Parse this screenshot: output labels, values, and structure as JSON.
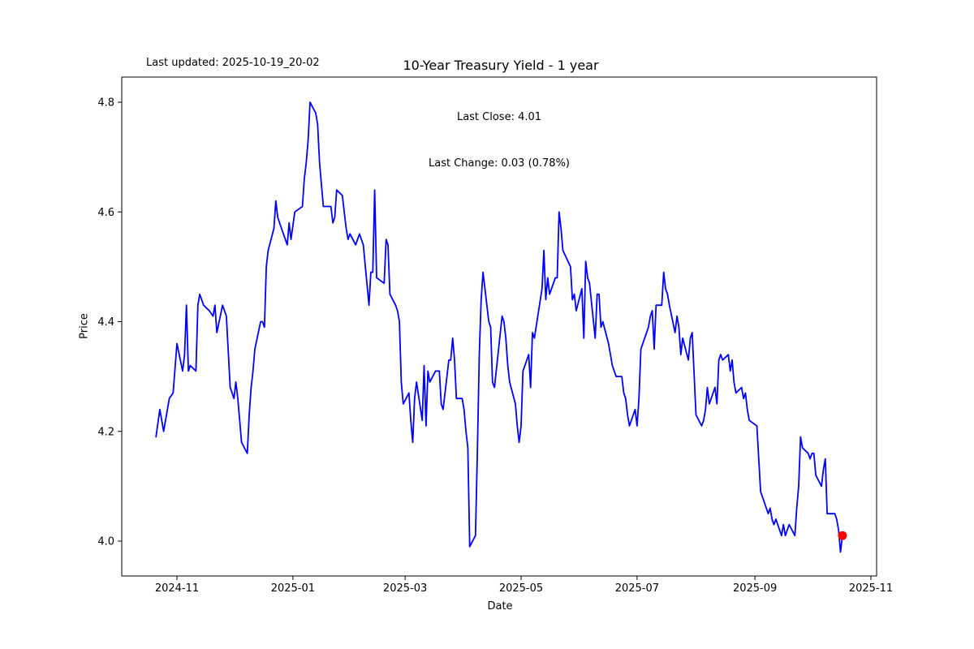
{
  "header": {
    "last_updated": "Last updated: 2025-10-19_20-02",
    "title": "10-Year Treasury Yield - 1 year",
    "annotation_line1": "Last Close: 4.01",
    "annotation_line2": "Last Change: 0.03 (0.78%)"
  },
  "chart_data": {
    "type": "line",
    "title": "10-Year Treasury Yield - 1 year",
    "xlabel": "Date",
    "ylabel": "Price",
    "grid": false,
    "legend": null,
    "line_color": "#0000ff",
    "last_point_marker_color": "#ff0000",
    "frame_color": "#000000",
    "last_close": 4.01,
    "last_change_text": "0.03 (0.78%)",
    "ylim": [
      3.936,
      4.846
    ],
    "xlim": [
      "2024-10-03",
      "2025-11-04"
    ],
    "y_ticks": [
      4.0,
      4.2,
      4.4,
      4.6,
      4.8
    ],
    "y_tick_labels": [
      "4.0",
      "4.2",
      "4.4",
      "4.6",
      "4.8"
    ],
    "x_ticks": [
      "2024-11-01",
      "2025-01-01",
      "2025-03-01",
      "2025-05-01",
      "2025-07-01",
      "2025-09-01",
      "2025-11-01"
    ],
    "x_tick_labels": [
      "2024-11",
      "2025-01",
      "2025-03",
      "2025-05",
      "2025-07",
      "2025-09",
      "2025-11"
    ],
    "points": [
      [
        "2024-10-21",
        4.19
      ],
      [
        "2024-10-23",
        4.24
      ],
      [
        "2024-10-25",
        4.2
      ],
      [
        "2024-10-28",
        4.26
      ],
      [
        "2024-10-30",
        4.27
      ],
      [
        "2024-11-01",
        4.36
      ],
      [
        "2024-11-04",
        4.31
      ],
      [
        "2024-11-05",
        4.34
      ],
      [
        "2024-11-06",
        4.43
      ],
      [
        "2024-11-07",
        4.31
      ],
      [
        "2024-11-08",
        4.32
      ],
      [
        "2024-11-11",
        4.31
      ],
      [
        "2024-11-12",
        4.43
      ],
      [
        "2024-11-13",
        4.45
      ],
      [
        "2024-11-15",
        4.43
      ],
      [
        "2024-11-18",
        4.42
      ],
      [
        "2024-11-20",
        4.41
      ],
      [
        "2024-11-21",
        4.43
      ],
      [
        "2024-11-22",
        4.38
      ],
      [
        "2024-11-25",
        4.43
      ],
      [
        "2024-11-26",
        4.42
      ],
      [
        "2024-11-27",
        4.41
      ],
      [
        "2024-11-29",
        4.28
      ],
      [
        "2024-12-01",
        4.26
      ],
      [
        "2024-12-02",
        4.29
      ],
      [
        "2024-12-03",
        4.26
      ],
      [
        "2024-12-04",
        4.22
      ],
      [
        "2024-12-05",
        4.18
      ],
      [
        "2024-12-08",
        4.16
      ],
      [
        "2024-12-09",
        4.23
      ],
      [
        "2024-12-10",
        4.28
      ],
      [
        "2024-12-11",
        4.31
      ],
      [
        "2024-12-12",
        4.35
      ],
      [
        "2024-12-15",
        4.4
      ],
      [
        "2024-12-16",
        4.4
      ],
      [
        "2024-12-17",
        4.39
      ],
      [
        "2024-12-18",
        4.5
      ],
      [
        "2024-12-19",
        4.53
      ],
      [
        "2024-12-22",
        4.57
      ],
      [
        "2024-12-23",
        4.62
      ],
      [
        "2024-12-24",
        4.59
      ],
      [
        "2024-12-26",
        4.57
      ],
      [
        "2024-12-29",
        4.54
      ],
      [
        "2024-12-30",
        4.58
      ],
      [
        "2024-12-31",
        4.55
      ],
      [
        "2025-01-02",
        4.6
      ],
      [
        "2025-01-06",
        4.61
      ],
      [
        "2025-01-07",
        4.66
      ],
      [
        "2025-01-08",
        4.69
      ],
      [
        "2025-01-09",
        4.73
      ],
      [
        "2025-01-10",
        4.8
      ],
      [
        "2025-01-13",
        4.78
      ],
      [
        "2025-01-14",
        4.76
      ],
      [
        "2025-01-15",
        4.69
      ],
      [
        "2025-01-16",
        4.65
      ],
      [
        "2025-01-17",
        4.61
      ],
      [
        "2025-01-21",
        4.61
      ],
      [
        "2025-01-22",
        4.58
      ],
      [
        "2025-01-23",
        4.59
      ],
      [
        "2025-01-24",
        4.64
      ],
      [
        "2025-01-27",
        4.63
      ],
      [
        "2025-01-28",
        4.6
      ],
      [
        "2025-01-29",
        4.57
      ],
      [
        "2025-01-30",
        4.55
      ],
      [
        "2025-01-31",
        4.56
      ],
      [
        "2025-02-03",
        4.54
      ],
      [
        "2025-02-05",
        4.56
      ],
      [
        "2025-02-06",
        4.55
      ],
      [
        "2025-02-07",
        4.54
      ],
      [
        "2025-02-10",
        4.43
      ],
      [
        "2025-02-11",
        4.49
      ],
      [
        "2025-02-12",
        4.49
      ],
      [
        "2025-02-13",
        4.64
      ],
      [
        "2025-02-14",
        4.48
      ],
      [
        "2025-02-18",
        4.47
      ],
      [
        "2025-02-19",
        4.55
      ],
      [
        "2025-02-20",
        4.54
      ],
      [
        "2025-02-21",
        4.45
      ],
      [
        "2025-02-24",
        4.43
      ],
      [
        "2025-02-25",
        4.42
      ],
      [
        "2025-02-26",
        4.4
      ],
      [
        "2025-02-27",
        4.29
      ],
      [
        "2025-02-28",
        4.25
      ],
      [
        "2025-03-03",
        4.27
      ],
      [
        "2025-03-04",
        4.22
      ],
      [
        "2025-03-05",
        4.18
      ],
      [
        "2025-03-06",
        4.26
      ],
      [
        "2025-03-07",
        4.29
      ],
      [
        "2025-03-10",
        4.22
      ],
      [
        "2025-03-11",
        4.32
      ],
      [
        "2025-03-12",
        4.21
      ],
      [
        "2025-03-13",
        4.31
      ],
      [
        "2025-03-14",
        4.29
      ],
      [
        "2025-03-17",
        4.31
      ],
      [
        "2025-03-18",
        4.31
      ],
      [
        "2025-03-19",
        4.31
      ],
      [
        "2025-03-20",
        4.25
      ],
      [
        "2025-03-21",
        4.24
      ],
      [
        "2025-03-24",
        4.33
      ],
      [
        "2025-03-25",
        4.33
      ],
      [
        "2025-03-26",
        4.37
      ],
      [
        "2025-03-27",
        4.33
      ],
      [
        "2025-03-28",
        4.26
      ],
      [
        "2025-03-31",
        4.26
      ],
      [
        "2025-04-01",
        4.24
      ],
      [
        "2025-04-02",
        4.2
      ],
      [
        "2025-04-03",
        4.17
      ],
      [
        "2025-04-04",
        3.99
      ],
      [
        "2025-04-07",
        4.01
      ],
      [
        "2025-04-08",
        4.16
      ],
      [
        "2025-04-09",
        4.34
      ],
      [
        "2025-04-10",
        4.44
      ],
      [
        "2025-04-11",
        4.49
      ],
      [
        "2025-04-14",
        4.4
      ],
      [
        "2025-04-15",
        4.39
      ],
      [
        "2025-04-16",
        4.29
      ],
      [
        "2025-04-17",
        4.28
      ],
      [
        "2025-04-21",
        4.41
      ],
      [
        "2025-04-22",
        4.4
      ],
      [
        "2025-04-23",
        4.37
      ],
      [
        "2025-04-24",
        4.32
      ],
      [
        "2025-04-25",
        4.29
      ],
      [
        "2025-04-28",
        4.25
      ],
      [
        "2025-04-29",
        4.21
      ],
      [
        "2025-04-30",
        4.18
      ],
      [
        "2025-05-01",
        4.21
      ],
      [
        "2025-05-02",
        4.31
      ],
      [
        "2025-05-05",
        4.34
      ],
      [
        "2025-05-06",
        4.28
      ],
      [
        "2025-05-07",
        4.38
      ],
      [
        "2025-05-08",
        4.37
      ],
      [
        "2025-05-12",
        4.46
      ],
      [
        "2025-05-13",
        4.53
      ],
      [
        "2025-05-14",
        4.44
      ],
      [
        "2025-05-15",
        4.48
      ],
      [
        "2025-05-16",
        4.45
      ],
      [
        "2025-05-19",
        4.48
      ],
      [
        "2025-05-20",
        4.48
      ],
      [
        "2025-05-21",
        4.6
      ],
      [
        "2025-05-22",
        4.57
      ],
      [
        "2025-05-23",
        4.53
      ],
      [
        "2025-05-27",
        4.5
      ],
      [
        "2025-05-28",
        4.44
      ],
      [
        "2025-05-29",
        4.45
      ],
      [
        "2025-05-30",
        4.42
      ],
      [
        "2025-06-02",
        4.46
      ],
      [
        "2025-06-03",
        4.37
      ],
      [
        "2025-06-04",
        4.51
      ],
      [
        "2025-06-05",
        4.48
      ],
      [
        "2025-06-06",
        4.47
      ],
      [
        "2025-06-09",
        4.37
      ],
      [
        "2025-06-10",
        4.45
      ],
      [
        "2025-06-11",
        4.45
      ],
      [
        "2025-06-12",
        4.39
      ],
      [
        "2025-06-13",
        4.4
      ],
      [
        "2025-06-16",
        4.36
      ],
      [
        "2025-06-17",
        4.34
      ],
      [
        "2025-06-18",
        4.32
      ],
      [
        "2025-06-20",
        4.3
      ],
      [
        "2025-06-23",
        4.3
      ],
      [
        "2025-06-24",
        4.27
      ],
      [
        "2025-06-25",
        4.26
      ],
      [
        "2025-06-26",
        4.23
      ],
      [
        "2025-06-27",
        4.21
      ],
      [
        "2025-06-30",
        4.24
      ],
      [
        "2025-07-01",
        4.21
      ],
      [
        "2025-07-02",
        4.26
      ],
      [
        "2025-07-03",
        4.35
      ],
      [
        "2025-07-07",
        4.39
      ],
      [
        "2025-07-08",
        4.41
      ],
      [
        "2025-07-09",
        4.42
      ],
      [
        "2025-07-10",
        4.35
      ],
      [
        "2025-07-11",
        4.43
      ],
      [
        "2025-07-14",
        4.43
      ],
      [
        "2025-07-15",
        4.49
      ],
      [
        "2025-07-16",
        4.46
      ],
      [
        "2025-07-17",
        4.45
      ],
      [
        "2025-07-18",
        4.43
      ],
      [
        "2025-07-21",
        4.38
      ],
      [
        "2025-07-22",
        4.41
      ],
      [
        "2025-07-23",
        4.39
      ],
      [
        "2025-07-24",
        4.34
      ],
      [
        "2025-07-25",
        4.37
      ],
      [
        "2025-07-28",
        4.33
      ],
      [
        "2025-07-29",
        4.37
      ],
      [
        "2025-07-30",
        4.38
      ],
      [
        "2025-08-01",
        4.23
      ],
      [
        "2025-08-04",
        4.21
      ],
      [
        "2025-08-05",
        4.22
      ],
      [
        "2025-08-06",
        4.24
      ],
      [
        "2025-08-07",
        4.28
      ],
      [
        "2025-08-08",
        4.25
      ],
      [
        "2025-08-11",
        4.28
      ],
      [
        "2025-08-12",
        4.25
      ],
      [
        "2025-08-13",
        4.33
      ],
      [
        "2025-08-14",
        4.34
      ],
      [
        "2025-08-15",
        4.33
      ],
      [
        "2025-08-18",
        4.34
      ],
      [
        "2025-08-19",
        4.31
      ],
      [
        "2025-08-20",
        4.33
      ],
      [
        "2025-08-21",
        4.29
      ],
      [
        "2025-08-22",
        4.27
      ],
      [
        "2025-08-25",
        4.28
      ],
      [
        "2025-08-26",
        4.26
      ],
      [
        "2025-08-27",
        4.27
      ],
      [
        "2025-08-28",
        4.24
      ],
      [
        "2025-08-29",
        4.22
      ],
      [
        "2025-09-02",
        4.21
      ],
      [
        "2025-09-03",
        4.15
      ],
      [
        "2025-09-04",
        4.09
      ],
      [
        "2025-09-05",
        4.08
      ],
      [
        "2025-09-08",
        4.05
      ],
      [
        "2025-09-09",
        4.06
      ],
      [
        "2025-09-10",
        4.04
      ],
      [
        "2025-09-11",
        4.03
      ],
      [
        "2025-09-12",
        4.04
      ],
      [
        "2025-09-15",
        4.01
      ],
      [
        "2025-09-16",
        4.03
      ],
      [
        "2025-09-17",
        4.01
      ],
      [
        "2025-09-18",
        4.02
      ],
      [
        "2025-09-19",
        4.03
      ],
      [
        "2025-09-22",
        4.01
      ],
      [
        "2025-09-23",
        4.06
      ],
      [
        "2025-09-24",
        4.1
      ],
      [
        "2025-09-25",
        4.19
      ],
      [
        "2025-09-26",
        4.17
      ],
      [
        "2025-09-29",
        4.16
      ],
      [
        "2025-09-30",
        4.15
      ],
      [
        "2025-10-01",
        4.16
      ],
      [
        "2025-10-02",
        4.16
      ],
      [
        "2025-10-03",
        4.12
      ],
      [
        "2025-10-06",
        4.1
      ],
      [
        "2025-10-07",
        4.13
      ],
      [
        "2025-10-08",
        4.15
      ],
      [
        "2025-10-09",
        4.05
      ],
      [
        "2025-10-10",
        4.05
      ],
      [
        "2025-10-13",
        4.05
      ],
      [
        "2025-10-14",
        4.04
      ],
      [
        "2025-10-15",
        4.02
      ],
      [
        "2025-10-16",
        3.98
      ],
      [
        "2025-10-17",
        4.01
      ]
    ]
  }
}
